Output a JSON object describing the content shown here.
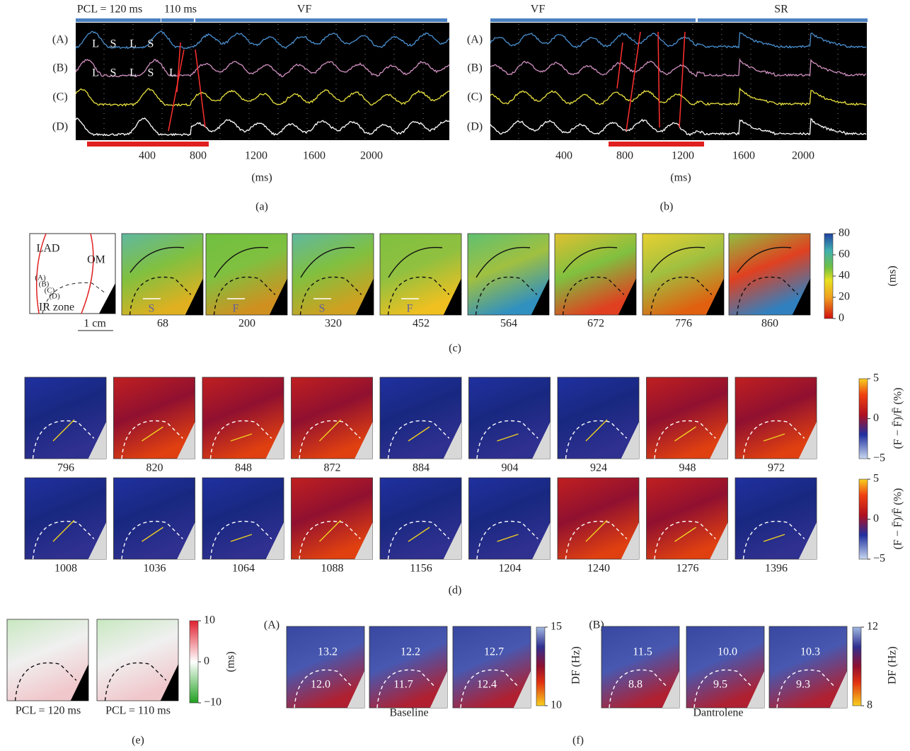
{
  "panel_a": {
    "label": "(a)",
    "pcl": "PCL = 120 ms",
    "pcl2": "110 ms",
    "rhythm": "VF",
    "traces": [
      "(A)",
      "(B)",
      "(C)",
      "(D)"
    ],
    "beats_a": [
      "L",
      "S",
      "L",
      "S"
    ],
    "beats_b": [
      "L",
      "S",
      "L",
      "S",
      "L"
    ],
    "xticks": [
      "400",
      "800",
      "1200",
      "1600",
      "2000"
    ],
    "xunit": "(ms)"
  },
  "panel_b": {
    "label": "(b)",
    "rhythms": [
      "VF",
      "SR"
    ],
    "traces": [
      "(A)",
      "(B)",
      "(C)",
      "(D)"
    ],
    "xticks": [
      "400",
      "800",
      "1200",
      "1600",
      "2000"
    ],
    "xunit": "(ms)"
  },
  "panel_c": {
    "label": "(c)",
    "schematic": {
      "labels": [
        "LAD",
        "OM",
        "(A)",
        "(B)",
        "(C)",
        "(D)",
        "IR zone"
      ],
      "scale": "1 cm"
    },
    "frames": [
      "68",
      "200",
      "320",
      "452",
      "564",
      "672",
      "776",
      "860"
    ],
    "waves": [
      "S",
      "F",
      "S",
      "F"
    ],
    "colorbar_ticks": [
      "80",
      "60",
      "40",
      "20",
      "0"
    ],
    "unit": "(ms)"
  },
  "panel_d": {
    "label": "(d)",
    "rows": [
      {
        "frames": [
          "796",
          "820",
          "848",
          "872",
          "884",
          "904",
          "924",
          "948",
          "972"
        ],
        "colorbar_ticks": [
          "5",
          "0",
          "−5"
        ],
        "colorbar_label": "(F − F̄)/F̄ (%)"
      },
      {
        "frames": [
          "1008",
          "1036",
          "1064",
          "1088",
          "1156",
          "1204",
          "1240",
          "1276",
          "1396"
        ],
        "colorbar_ticks": [
          "5",
          "0",
          "−5"
        ],
        "colorbar_label": "(F − F̄)/F̄ (%)"
      }
    ]
  },
  "panel_e": {
    "label": "(e)",
    "frames": [
      "PCL = 120 ms",
      "PCL = 110 ms"
    ],
    "colorbar_ticks": [
      "10",
      "0",
      "−10"
    ],
    "unit": "(ms)"
  },
  "panel_f": {
    "label": "(f)",
    "groups": [
      {
        "label": "(A)",
        "frames": [
          [
            "13.2",
            "12.0"
          ],
          [
            "12.2",
            "11.7"
          ],
          [
            "12.7",
            "12.4"
          ]
        ],
        "caption": "Baseline",
        "colorbar_ticks": [
          "15",
          "10"
        ],
        "unit": "DF (Hz)"
      },
      {
        "label": "(B)",
        "frames": [
          [
            "11.5",
            "8.8"
          ],
          [
            "10.0",
            "9.5"
          ],
          [
            "10.3",
            "9.3"
          ]
        ],
        "caption": "Dantrolene",
        "colorbar_ticks": [
          "12",
          "8"
        ],
        "unit": "DF (Hz)"
      }
    ]
  }
}
